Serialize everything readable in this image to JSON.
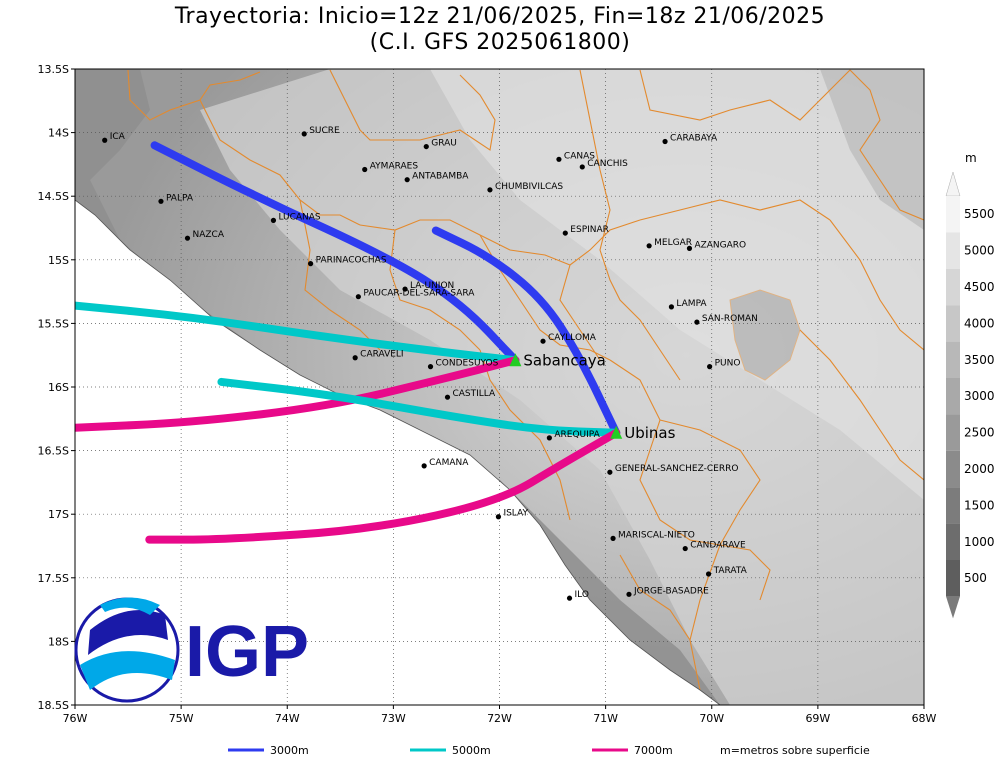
{
  "title": {
    "line1": "Trayectoria: Inicio=12z 21/06/2025, Fin=18z 21/06/2025",
    "line2": "(C.I. GFS 2025061800)"
  },
  "map": {
    "lon_range": [
      -76,
      -68
    ],
    "lat_range": [
      -18.5,
      -13.5
    ],
    "lon_ticks": [
      {
        "v": -76,
        "label": "76W"
      },
      {
        "v": -75,
        "label": "75W"
      },
      {
        "v": -74,
        "label": "74W"
      },
      {
        "v": -73,
        "label": "73W"
      },
      {
        "v": -72,
        "label": "72W"
      },
      {
        "v": -71,
        "label": "71W"
      },
      {
        "v": -70,
        "label": "70W"
      },
      {
        "v": -69,
        "label": "69W"
      },
      {
        "v": -68,
        "label": "68W"
      }
    ],
    "lat_ticks": [
      {
        "v": -13.5,
        "label": "13.5S"
      },
      {
        "v": -14,
        "label": "14S"
      },
      {
        "v": -14.5,
        "label": "14.5S"
      },
      {
        "v": -15,
        "label": "15S"
      },
      {
        "v": -15.5,
        "label": "15.5S"
      },
      {
        "v": -16,
        "label": "16S"
      },
      {
        "v": -16.5,
        "label": "16.5S"
      },
      {
        "v": -17,
        "label": "17S"
      },
      {
        "v": -17.5,
        "label": "17.5S"
      },
      {
        "v": -18,
        "label": "18S"
      },
      {
        "v": -18.5,
        "label": "18.5S"
      }
    ],
    "places": [
      {
        "name": "ICA",
        "lon": -75.72,
        "lat": -14.06
      },
      {
        "name": "SUCRE",
        "lon": -73.84,
        "lat": -14.01
      },
      {
        "name": "GRAU",
        "lon": -72.69,
        "lat": -14.11
      },
      {
        "name": "CARABAYA",
        "lon": -70.44,
        "lat": -14.07
      },
      {
        "name": "CANAS",
        "lon": -71.44,
        "lat": -14.21
      },
      {
        "name": "CANCHIS",
        "lon": -71.22,
        "lat": -14.27
      },
      {
        "name": "AYMARAES",
        "lon": -73.27,
        "lat": -14.29
      },
      {
        "name": "ANTABAMBA",
        "lon": -72.87,
        "lat": -14.37
      },
      {
        "name": "CHUMBIVILCAS",
        "lon": -72.09,
        "lat": -14.45
      },
      {
        "name": "PALPA",
        "lon": -75.19,
        "lat": -14.54
      },
      {
        "name": "LUCANAS",
        "lon": -74.13,
        "lat": -14.69
      },
      {
        "name": "NAZCA",
        "lon": -74.94,
        "lat": -14.83
      },
      {
        "name": "ESPINAR",
        "lon": -71.38,
        "lat": -14.79
      },
      {
        "name": "MELGAR",
        "lon": -70.59,
        "lat": -14.89
      },
      {
        "name": "AZANGARO",
        "lon": -70.21,
        "lat": -14.91
      },
      {
        "name": "PARINACOCHAS",
        "lon": -73.78,
        "lat": -15.03
      },
      {
        "name": "LA-UNION",
        "lon": -72.89,
        "lat": -15.23
      },
      {
        "name": "PAUCAR-DEL-SARA-SARA",
        "lon": -73.33,
        "lat": -15.29
      },
      {
        "name": "LAMPA",
        "lon": -70.38,
        "lat": -15.37
      },
      {
        "name": "SAN-ROMAN",
        "lon": -70.14,
        "lat": -15.49
      },
      {
        "name": "CAYLLOMA",
        "lon": -71.59,
        "lat": -15.64
      },
      {
        "name": "CARAVELI",
        "lon": -73.36,
        "lat": -15.77
      },
      {
        "name": "CONDESUYOS",
        "lon": -72.65,
        "lat": -15.84
      },
      {
        "name": "PUNO",
        "lon": -70.02,
        "lat": -15.84
      },
      {
        "name": "CASTILLA",
        "lon": -72.49,
        "lat": -16.08
      },
      {
        "name": "AREQUIPA",
        "lon": -71.53,
        "lat": -16.4
      },
      {
        "name": "CAMANA",
        "lon": -72.71,
        "lat": -16.62
      },
      {
        "name": "GENERAL-SANCHEZ-CERRO",
        "lon": -70.96,
        "lat": -16.67
      },
      {
        "name": "ISLAY",
        "lon": -72.01,
        "lat": -17.02
      },
      {
        "name": "MARISCAL-NIETO",
        "lon": -70.93,
        "lat": -17.19
      },
      {
        "name": "CANDARAVE",
        "lon": -70.25,
        "lat": -17.27
      },
      {
        "name": "TARATA",
        "lon": -70.03,
        "lat": -17.47
      },
      {
        "name": "JORGE-BASADRE",
        "lon": -70.78,
        "lat": -17.63
      },
      {
        "name": "ILO",
        "lon": -71.34,
        "lat": -17.66
      }
    ],
    "volcanoes": [
      {
        "name": "Sabancaya",
        "lon": -71.85,
        "lat": -15.79
      },
      {
        "name": "Ubinas",
        "lon": -70.9,
        "lat": -16.36
      }
    ],
    "trajectories": [
      {
        "source": "Sabancaya",
        "level": "3000m",
        "points": [
          [
            -71.85,
            -15.79
          ],
          [
            -72.35,
            -15.35
          ],
          [
            -73.0,
            -15.0
          ],
          [
            -74.3,
            -14.5
          ],
          [
            -75.25,
            -14.1
          ]
        ]
      },
      {
        "source": "Sabancaya",
        "level": "5000m",
        "points": [
          [
            -71.85,
            -15.79
          ],
          [
            -72.6,
            -15.72
          ],
          [
            -73.7,
            -15.6
          ],
          [
            -74.9,
            -15.45
          ],
          [
            -76.0,
            -15.36
          ]
        ]
      },
      {
        "source": "Sabancaya",
        "level": "7000m",
        "points": [
          [
            -71.85,
            -15.79
          ],
          [
            -72.6,
            -15.95
          ],
          [
            -73.6,
            -16.15
          ],
          [
            -74.9,
            -16.28
          ],
          [
            -76.0,
            -16.32
          ]
        ]
      },
      {
        "source": "Ubinas",
        "level": "3000m",
        "points": [
          [
            -70.9,
            -16.36
          ],
          [
            -71.25,
            -15.75
          ],
          [
            -71.6,
            -15.3
          ],
          [
            -72.1,
            -14.97
          ],
          [
            -72.6,
            -14.77
          ]
        ]
      },
      {
        "source": "Ubinas",
        "level": "5000m",
        "points": [
          [
            -70.9,
            -16.36
          ],
          [
            -71.6,
            -16.34
          ],
          [
            -72.4,
            -16.24
          ],
          [
            -73.6,
            -16.06
          ],
          [
            -74.62,
            -15.96
          ]
        ]
      },
      {
        "source": "Ubinas",
        "level": "7000m",
        "points": [
          [
            -70.9,
            -16.36
          ],
          [
            -71.4,
            -16.6
          ],
          [
            -72.0,
            -16.9
          ],
          [
            -73.2,
            -17.12
          ],
          [
            -74.6,
            -17.2
          ],
          [
            -75.3,
            -17.2
          ]
        ]
      }
    ]
  },
  "legend": {
    "items": [
      {
        "label": "3000m",
        "color": "#2e3bf0"
      },
      {
        "label": "5000m",
        "color": "#00c8c8"
      },
      {
        "label": "7000m",
        "color": "#e8098a"
      }
    ],
    "note": "m=metros sobre superficie"
  },
  "colorbar": {
    "unit": "m",
    "labels": [
      "5500",
      "5000",
      "4500",
      "4000",
      "3500",
      "3000",
      "2500",
      "2000",
      "1500",
      "1000",
      "500"
    ]
  },
  "logo": {
    "text": "IGP",
    "color": "#1a1aa8"
  }
}
